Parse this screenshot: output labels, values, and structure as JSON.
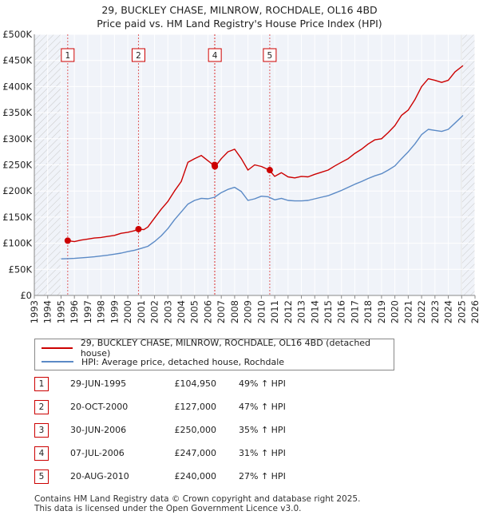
{
  "title_line1": "29, BUCKLEY CHASE, MILNROW, ROCHDALE, OL16 4BD",
  "title_line2": "Price paid vs. HM Land Registry's House Price Index (HPI)",
  "chart_data": {
    "type": "line",
    "x_range": [
      1993,
      2026
    ],
    "y_range": [
      0,
      500000
    ],
    "x_ticks": [
      "1993",
      "1994",
      "1995",
      "1996",
      "1997",
      "1998",
      "1999",
      "2000",
      "2001",
      "2002",
      "2003",
      "2004",
      "2005",
      "2006",
      "2007",
      "2008",
      "2009",
      "2010",
      "2011",
      "2012",
      "2013",
      "2014",
      "2015",
      "2016",
      "2017",
      "2018",
      "2019",
      "2020",
      "2021",
      "2022",
      "2023",
      "2024",
      "2025",
      "2026"
    ],
    "y_ticks": [
      {
        "value": 0,
        "label": "£0"
      },
      {
        "value": 50000,
        "label": "£50K"
      },
      {
        "value": 100000,
        "label": "£100K"
      },
      {
        "value": 150000,
        "label": "£150K"
      },
      {
        "value": 200000,
        "label": "£200K"
      },
      {
        "value": 250000,
        "label": "£250K"
      },
      {
        "value": 300000,
        "label": "£300K"
      },
      {
        "value": 350000,
        "label": "£350K"
      },
      {
        "value": 400000,
        "label": "£400K"
      },
      {
        "value": 450000,
        "label": "£450K"
      },
      {
        "value": 500000,
        "label": "£500K"
      }
    ],
    "hatch_before": 1995.0,
    "hatch_after": 2025.0,
    "series": [
      {
        "name": "29, BUCKLEY CHASE, MILNROW, ROCHDALE, OL16 4BD (detached house)",
        "color": "#cc0000",
        "points": [
          [
            1995.5,
            104950
          ],
          [
            1996.0,
            103000
          ],
          [
            1996.5,
            106000
          ],
          [
            1997.0,
            108000
          ],
          [
            1997.5,
            110000
          ],
          [
            1998.0,
            111000
          ],
          [
            1998.5,
            113000
          ],
          [
            1999.0,
            115000
          ],
          [
            1999.5,
            119000
          ],
          [
            2000.0,
            121000
          ],
          [
            2000.5,
            124000
          ],
          [
            2000.8,
            127000
          ],
          [
            2001.2,
            126000
          ],
          [
            2001.5,
            131000
          ],
          [
            2002.0,
            148000
          ],
          [
            2002.5,
            165000
          ],
          [
            2003.0,
            180000
          ],
          [
            2003.5,
            200000
          ],
          [
            2004.0,
            218000
          ],
          [
            2004.5,
            255000
          ],
          [
            2005.0,
            262000
          ],
          [
            2005.5,
            268000
          ],
          [
            2006.0,
            258000
          ],
          [
            2006.4,
            250000
          ],
          [
            2006.55,
            247000
          ],
          [
            2007.0,
            262000
          ],
          [
            2007.5,
            275000
          ],
          [
            2008.0,
            280000
          ],
          [
            2008.5,
            262000
          ],
          [
            2009.0,
            240000
          ],
          [
            2009.5,
            250000
          ],
          [
            2010.0,
            247000
          ],
          [
            2010.6,
            240000
          ],
          [
            2011.0,
            228000
          ],
          [
            2011.5,
            235000
          ],
          [
            2012.0,
            227000
          ],
          [
            2012.5,
            225000
          ],
          [
            2013.0,
            228000
          ],
          [
            2013.5,
            227000
          ],
          [
            2014.0,
            232000
          ],
          [
            2014.5,
            236000
          ],
          [
            2015.0,
            240000
          ],
          [
            2015.5,
            248000
          ],
          [
            2016.0,
            255000
          ],
          [
            2016.5,
            262000
          ],
          [
            2017.0,
            272000
          ],
          [
            2017.5,
            280000
          ],
          [
            2018.0,
            290000
          ],
          [
            2018.5,
            298000
          ],
          [
            2019.0,
            300000
          ],
          [
            2019.5,
            312000
          ],
          [
            2020.0,
            325000
          ],
          [
            2020.5,
            345000
          ],
          [
            2021.0,
            355000
          ],
          [
            2021.5,
            375000
          ],
          [
            2022.0,
            400000
          ],
          [
            2022.5,
            415000
          ],
          [
            2023.0,
            412000
          ],
          [
            2023.5,
            408000
          ],
          [
            2024.0,
            412000
          ],
          [
            2024.5,
            428000
          ],
          [
            2025.0,
            438000
          ],
          [
            2025.1,
            440000
          ]
        ]
      },
      {
        "name": "HPI: Average price, detached house, Rochdale",
        "color": "#5b8ac6",
        "points": [
          [
            1995.0,
            70000
          ],
          [
            1995.5,
            70500
          ],
          [
            1996.0,
            71000
          ],
          [
            1996.5,
            72000
          ],
          [
            1997.0,
            73000
          ],
          [
            1997.5,
            74000
          ],
          [
            1998.0,
            75500
          ],
          [
            1998.5,
            77000
          ],
          [
            1999.0,
            79000
          ],
          [
            1999.5,
            81000
          ],
          [
            2000.0,
            84000
          ],
          [
            2000.5,
            86500
          ],
          [
            2001.0,
            90000
          ],
          [
            2001.5,
            94000
          ],
          [
            2002.0,
            103000
          ],
          [
            2002.5,
            114000
          ],
          [
            2003.0,
            128000
          ],
          [
            2003.5,
            145000
          ],
          [
            2004.0,
            160000
          ],
          [
            2004.5,
            175000
          ],
          [
            2005.0,
            182000
          ],
          [
            2005.5,
            186000
          ],
          [
            2006.0,
            185000
          ],
          [
            2006.5,
            188000
          ],
          [
            2007.0,
            197000
          ],
          [
            2007.5,
            203000
          ],
          [
            2008.0,
            207000
          ],
          [
            2008.5,
            199000
          ],
          [
            2009.0,
            182000
          ],
          [
            2009.5,
            185000
          ],
          [
            2010.0,
            190000
          ],
          [
            2010.5,
            189000
          ],
          [
            2011.0,
            183000
          ],
          [
            2011.5,
            186000
          ],
          [
            2012.0,
            182000
          ],
          [
            2012.5,
            181000
          ],
          [
            2013.0,
            181000
          ],
          [
            2013.5,
            182000
          ],
          [
            2014.0,
            185000
          ],
          [
            2014.5,
            188000
          ],
          [
            2015.0,
            191000
          ],
          [
            2015.5,
            196000
          ],
          [
            2016.0,
            201000
          ],
          [
            2016.5,
            207000
          ],
          [
            2017.0,
            213000
          ],
          [
            2017.5,
            218000
          ],
          [
            2018.0,
            224000
          ],
          [
            2018.5,
            229000
          ],
          [
            2019.0,
            233000
          ],
          [
            2019.5,
            240000
          ],
          [
            2020.0,
            248000
          ],
          [
            2020.5,
            262000
          ],
          [
            2021.0,
            275000
          ],
          [
            2021.5,
            290000
          ],
          [
            2022.0,
            308000
          ],
          [
            2022.5,
            318000
          ],
          [
            2023.0,
            316000
          ],
          [
            2023.5,
            314000
          ],
          [
            2024.0,
            318000
          ],
          [
            2024.5,
            330000
          ],
          [
            2025.0,
            342000
          ],
          [
            2025.1,
            345000
          ]
        ]
      }
    ],
    "sales": [
      {
        "num": "1",
        "x": 1995.5,
        "y": 104950
      },
      {
        "num": "2",
        "x": 2000.8,
        "y": 127000
      },
      {
        "num": "3",
        "x": 2006.5,
        "y": 250000
      },
      {
        "num": "4",
        "x": 2006.52,
        "y": 247000
      },
      {
        "num": "5",
        "x": 2010.63,
        "y": 240000
      }
    ],
    "marker_labels": [
      {
        "num": "1",
        "x": 1995.5
      },
      {
        "num": "2",
        "x": 2000.8
      },
      {
        "num": "4",
        "x": 2006.52
      },
      {
        "num": "5",
        "x": 2010.63
      }
    ]
  },
  "legend": {
    "red_label": "29, BUCKLEY CHASE, MILNROW, ROCHDALE, OL16 4BD (detached house)",
    "blue_label": "HPI: Average price, detached house, Rochdale",
    "red_color": "#cc0000",
    "blue_color": "#5b8ac6"
  },
  "table": [
    {
      "num": "1",
      "date": "29-JUN-1995",
      "price": "£104,950",
      "hpi": "49% ↑ HPI"
    },
    {
      "num": "2",
      "date": "20-OCT-2000",
      "price": "£127,000",
      "hpi": "47% ↑ HPI"
    },
    {
      "num": "3",
      "date": "30-JUN-2006",
      "price": "£250,000",
      "hpi": "35% ↑ HPI"
    },
    {
      "num": "4",
      "date": "07-JUL-2006",
      "price": "£247,000",
      "hpi": "31% ↑ HPI"
    },
    {
      "num": "5",
      "date": "20-AUG-2010",
      "price": "£240,000",
      "hpi": "27% ↑ HPI"
    }
  ],
  "footer": {
    "line1": "Contains HM Land Registry data © Crown copyright and database right 2025.",
    "line2": "This data is licensed under the Open Government Licence v3.0."
  }
}
